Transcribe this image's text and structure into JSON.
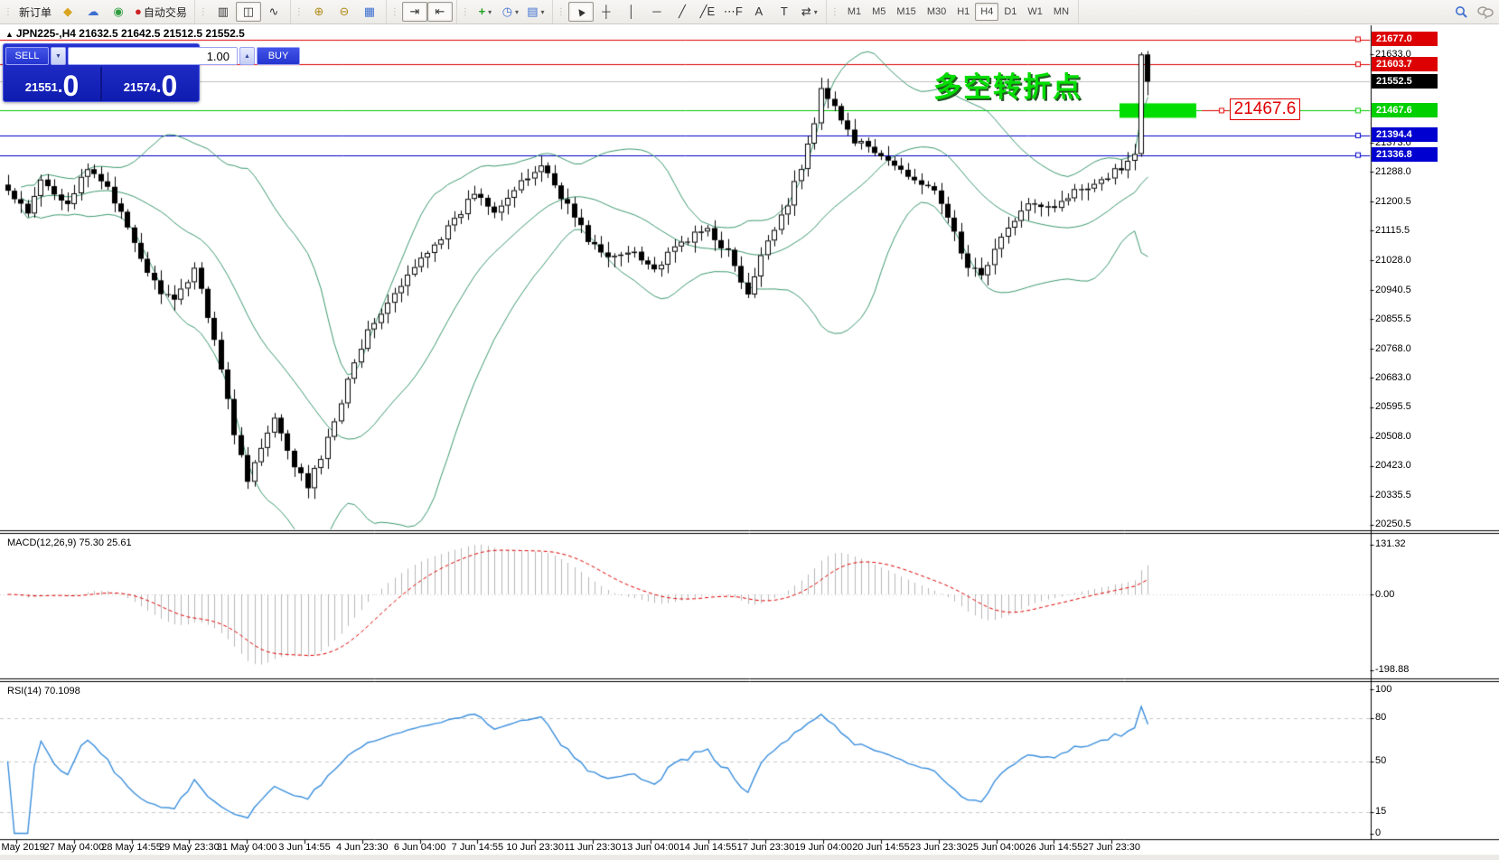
{
  "toolbar": {
    "new_order_label": "新订单",
    "autotrade_label": "自动交易",
    "groups": [
      {
        "name": "orders",
        "items": [
          {
            "name": "new-order-button",
            "label": "新订单"
          },
          {
            "name": "gold-icon",
            "glyph": "◆",
            "color": "#d9a520"
          },
          {
            "name": "community-icon",
            "glyph": "☁",
            "color": "#3d6fd0"
          },
          {
            "name": "signals-icon",
            "glyph": "◉",
            "color": "#2f9e3f"
          },
          {
            "name": "autotrading-button",
            "glyph": "●",
            "color": "#cc2222",
            "label": "自动交易"
          }
        ]
      },
      {
        "name": "chart-types",
        "items": [
          {
            "name": "bar-chart-icon",
            "glyph": "▥"
          },
          {
            "name": "candlestick-chart-icon",
            "glyph": "◫",
            "selected": true
          },
          {
            "name": "line-chart-icon",
            "glyph": "∿"
          }
        ]
      },
      {
        "name": "zoom",
        "items": [
          {
            "name": "zoom-in-icon",
            "glyph": "⊕",
            "color": "#b08c1a"
          },
          {
            "name": "zoom-out-icon",
            "glyph": "⊖",
            "color": "#b08c1a"
          },
          {
            "name": "tile-windows-icon",
            "glyph": "▦",
            "color": "#3d6fd0"
          }
        ]
      },
      {
        "name": "scrolling",
        "items": [
          {
            "name": "auto-scroll-icon",
            "glyph": "⇥",
            "selected": true
          },
          {
            "name": "chart-shift-icon",
            "glyph": "⇤",
            "selected": true
          }
        ]
      },
      {
        "name": "inserts",
        "items": [
          {
            "name": "indicators-icon",
            "glyph": "+",
            "color": "#1fa01f",
            "bold": true,
            "dropdown": true
          },
          {
            "name": "periods-icon",
            "glyph": "◷",
            "color": "#3d6fd0",
            "dropdown": true
          },
          {
            "name": "templates-icon",
            "glyph": "▤",
            "color": "#3d6fd0",
            "dropdown": true
          }
        ]
      },
      {
        "name": "objects",
        "items": [
          {
            "name": "cursor-icon",
            "glyph": "▲",
            "rotate": true,
            "selected": true
          },
          {
            "name": "crosshair-icon",
            "glyph": "┼"
          },
          {
            "name": "vertical-line-icon",
            "glyph": "│"
          },
          {
            "name": "horizontal-line-icon",
            "glyph": "─"
          },
          {
            "name": "trendline-icon",
            "glyph": "╱"
          },
          {
            "name": "equidistant-channel-icon",
            "glyph": "╱E"
          },
          {
            "name": "fibonacci-icon",
            "glyph": "⋯F"
          },
          {
            "name": "text-icon",
            "glyph": "A"
          },
          {
            "name": "text-label-icon",
            "glyph": "T"
          },
          {
            "name": "arrows-icon",
            "glyph": "⇄",
            "dropdown": true
          }
        ]
      }
    ],
    "timeframes": [
      "M1",
      "M5",
      "M15",
      "M30",
      "H1",
      "H4",
      "D1",
      "W1",
      "MN"
    ],
    "selected_timeframe": "H4",
    "right_icons": [
      "search-icon",
      "chat-icon"
    ]
  },
  "chart": {
    "title": "JPN225-,H4  21632.5 21642.5 21512.5 21552.5",
    "symbol": "JPN225-",
    "period": "H4"
  },
  "order_panel": {
    "sell_label": "SELL",
    "buy_label": "BUY",
    "volume": "1.00",
    "sell_int": "21551",
    "sell_frac": "0",
    "buy_int": "21574",
    "buy_frac": "0"
  },
  "annotation": {
    "text": "多空转折点",
    "color": "#00dd00"
  },
  "floating_label": {
    "text": "21467.6",
    "color": "#e00000"
  },
  "macd_panel": {
    "label": "MACD(12,26,9) 75.30 25.61",
    "axis_ticks": [
      {
        "text": "131.32",
        "value": 131.32
      },
      {
        "text": "0.00",
        "value": 0
      },
      {
        "text": "-198.88",
        "value": -198.88
      }
    ]
  },
  "rsi_panel": {
    "label": "RSI(14) 70.1098",
    "axis_ticks": [
      {
        "text": "100",
        "value": 100
      },
      {
        "text": "80",
        "value": 80
      },
      {
        "text": "50",
        "value": 50
      },
      {
        "text": "15",
        "value": 15
      },
      {
        "text": "0",
        "value": 0
      }
    ],
    "level_lines": [
      80,
      50,
      15
    ]
  },
  "price_axis": {
    "plain_ticks": [
      "21633.0",
      "21373.0",
      "21288.0",
      "21200.5",
      "21115.5",
      "21028.0",
      "20940.5",
      "20855.5",
      "20768.0",
      "20683.0",
      "20595.5",
      "20508.0",
      "20423.0",
      "20335.5",
      "20250.5"
    ],
    "boxed_labels": [
      {
        "text": "21677.0",
        "value": 21677.0,
        "bg": "#dd0000"
      },
      {
        "text": "21603.7",
        "value": 21603.7,
        "bg": "#dd0000"
      },
      {
        "text": "21552.5",
        "value": 21552.5,
        "bg": "#000000"
      },
      {
        "text": "21467.6",
        "value": 21467.6,
        "bg": "#00cf00"
      },
      {
        "text": "21394.4",
        "value": 21394.4,
        "bg": "#0000d0"
      },
      {
        "text": "21336.8",
        "value": 21336.8,
        "bg": "#0000d0"
      }
    ]
  },
  "time_axis": [
    "23 May 2019",
    "27 May 04:00",
    "28 May 14:55",
    "29 May 23:30",
    "31 May 04:00",
    "3 Jun 14:55",
    "4 Jun 23:30",
    "6 Jun 04:00",
    "7 Jun 14:55",
    "10 Jun 23:30",
    "11 Jun 23:30",
    "13 Jun 04:00",
    "14 Jun 14:55",
    "17 Jun 23:30",
    "19 Jun 04:00",
    "20 Jun 14:55",
    "23 Jun 23:30",
    "25 Jun 04:00",
    "26 Jun 14:55",
    "27 Jun 23:30"
  ],
  "chart_data": {
    "type": "candlestick",
    "title": "JPN225-,H4",
    "current_bar": {
      "open": 21632.5,
      "high": 21642.5,
      "low": 21512.5,
      "close": 21552.5
    },
    "bid": "21551.0",
    "ask": "21574.0",
    "bars_count": 172,
    "close_path_waypoints": [
      [
        0,
        21230
      ],
      [
        3,
        21160
      ],
      [
        5,
        21260
      ],
      [
        9,
        21200
      ],
      [
        12,
        21290
      ],
      [
        15,
        21250
      ],
      [
        19,
        21070
      ],
      [
        22,
        20960
      ],
      [
        25,
        20900
      ],
      [
        28,
        21010
      ],
      [
        31,
        20800
      ],
      [
        34,
        20520
      ],
      [
        36,
        20390
      ],
      [
        40,
        20560
      ],
      [
        42,
        20460
      ],
      [
        45,
        20360
      ],
      [
        48,
        20500
      ],
      [
        52,
        20740
      ],
      [
        55,
        20850
      ],
      [
        59,
        20950
      ],
      [
        63,
        21060
      ],
      [
        67,
        21140
      ],
      [
        70,
        21230
      ],
      [
        73,
        21180
      ],
      [
        77,
        21250
      ],
      [
        80,
        21310
      ],
      [
        83,
        21220
      ],
      [
        87,
        21090
      ],
      [
        90,
        21030
      ],
      [
        94,
        21060
      ],
      [
        97,
        21000
      ],
      [
        101,
        21080
      ],
      [
        105,
        21120
      ],
      [
        108,
        21050
      ],
      [
        111,
        20920
      ],
      [
        114,
        21090
      ],
      [
        117,
        21200
      ],
      [
        119,
        21300
      ],
      [
        121,
        21430
      ],
      [
        122,
        21545
      ],
      [
        124,
        21480
      ],
      [
        126,
        21400
      ],
      [
        129,
        21350
      ],
      [
        132,
        21320
      ],
      [
        135,
        21280
      ],
      [
        138,
        21250
      ],
      [
        141,
        21160
      ],
      [
        144,
        21000
      ],
      [
        146,
        20990
      ],
      [
        148,
        21060
      ],
      [
        151,
        21150
      ],
      [
        154,
        21200
      ],
      [
        157,
        21190
      ],
      [
        160,
        21230
      ],
      [
        163,
        21260
      ],
      [
        166,
        21290
      ],
      [
        168,
        21320
      ],
      [
        169,
        21340
      ],
      [
        170,
        21632.5
      ],
      [
        171,
        21552.5
      ]
    ],
    "horizontal_levels": [
      {
        "price": 21677.0,
        "color": "#dd0000",
        "style": "solid"
      },
      {
        "price": 21603.7,
        "color": "#dd0000",
        "style": "solid"
      },
      {
        "price": 21552.5,
        "color": "#c0c0c0",
        "style": "solid",
        "role": "last-price"
      },
      {
        "price": 21467.6,
        "color": "#00cc00",
        "style": "solid"
      },
      {
        "price": 21394.4,
        "color": "#0000cc",
        "style": "solid"
      },
      {
        "price": 21336.8,
        "color": "#0000cc",
        "style": "solid"
      }
    ],
    "highlight_rect": {
      "price": 21467.6,
      "color": "#00dd00"
    },
    "bollinger": {
      "period": 20,
      "deviation": 2,
      "color": "#3c9970"
    },
    "macd": {
      "params": [
        12,
        26,
        9
      ],
      "current_macd": 75.3,
      "current_signal": 25.61,
      "axis_range": [
        -198.88,
        131.32
      ],
      "histogram_color": "#b8b8b8",
      "signal_color": "#e00000"
    },
    "rsi": {
      "period": 14,
      "current": 70.1098,
      "levels": [
        80,
        50,
        15
      ],
      "color": "#3b8fdd",
      "axis_range": [
        0,
        100
      ]
    },
    "ylim": [
      20250.5,
      21677.0
    ],
    "x_labels": [
      "23 May 2019",
      "27 May 04:00",
      "28 May 14:55",
      "29 May 23:30",
      "31 May 04:00",
      "3 Jun 14:55",
      "4 Jun 23:30",
      "6 Jun 04:00",
      "7 Jun 14:55",
      "10 Jun 23:30",
      "11 Jun 23:30",
      "13 Jun 04:00",
      "14 Jun 14:55",
      "17 Jun 23:30",
      "19 Jun 04:00",
      "20 Jun 14:55",
      "23 Jun 23:30",
      "25 Jun 04:00",
      "26 Jun 14:55",
      "27 Jun 23:30"
    ]
  }
}
